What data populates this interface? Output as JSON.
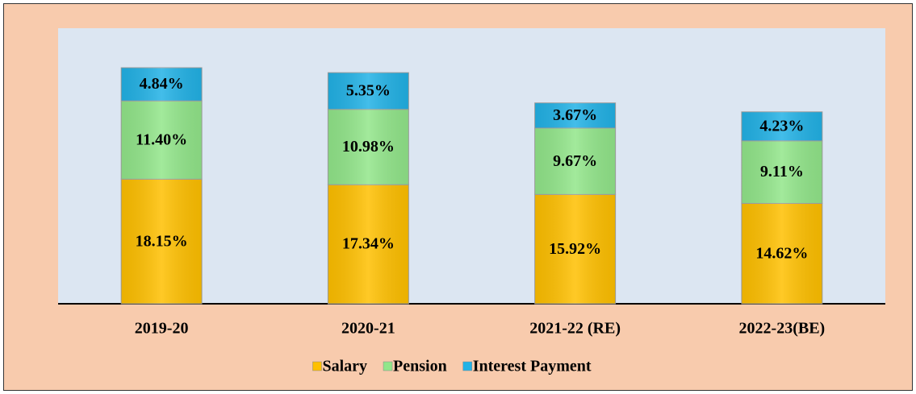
{
  "chart_data": {
    "type": "stacked_bar",
    "categories": [
      "2019-20",
      "2020-21",
      "2021-22 (RE)",
      "2022-23(BE)"
    ],
    "series": [
      {
        "name": "Salary",
        "color": "#ffc000",
        "values": [
          18.15,
          17.34,
          15.92,
          14.62
        ],
        "value_labels": [
          "18.15%",
          "17.34%",
          "15.92%",
          "14.62%"
        ]
      },
      {
        "name": "Pension",
        "color": "#92e68a",
        "values": [
          11.4,
          10.98,
          9.67,
          9.11
        ],
        "value_labels": [
          "11.40%",
          "10.98%",
          "9.67%",
          "9.11%"
        ]
      },
      {
        "name": "Interest Payment",
        "color": "#22b2e6",
        "values": [
          4.84,
          5.35,
          3.67,
          4.23
        ],
        "value_labels": [
          "4.84%",
          "5.35%",
          "3.67%",
          "4.23%"
        ]
      }
    ],
    "legend": "bottom"
  }
}
